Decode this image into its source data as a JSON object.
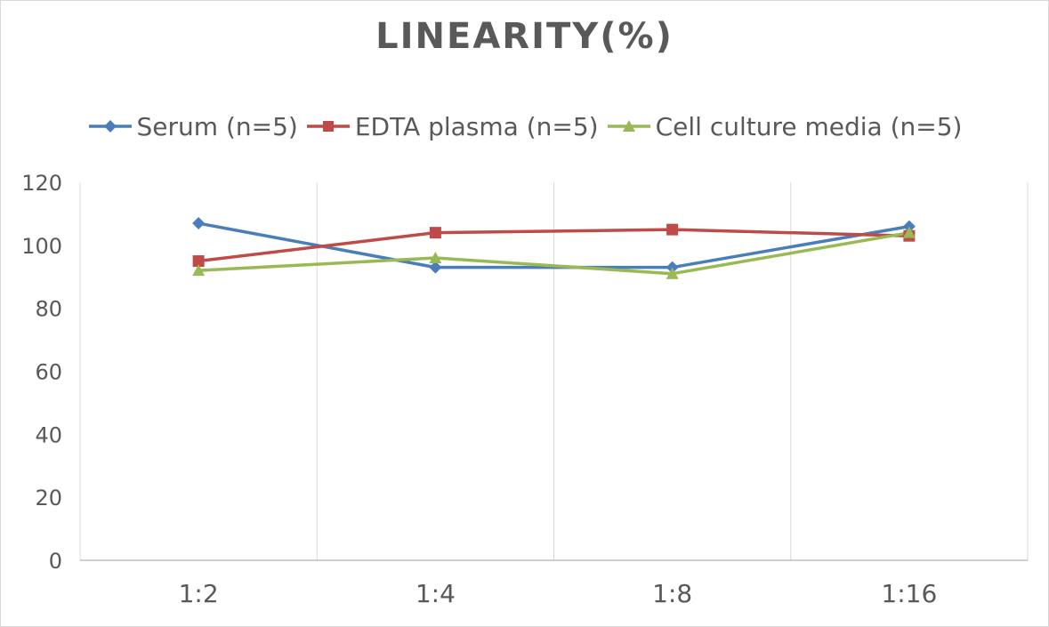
{
  "chart_data": {
    "type": "line",
    "title": "LINEARITY(%)",
    "xlabel": "",
    "ylabel": "",
    "categories": [
      "1:2",
      "1:4",
      "1:8",
      "1:16"
    ],
    "ylim": [
      0,
      120
    ],
    "yticks": [
      0,
      20,
      40,
      60,
      80,
      100,
      120
    ],
    "grid": "vertical",
    "legend_position": "top",
    "series": [
      {
        "name": "Serum (n=5)",
        "values": [
          107,
          93,
          93,
          106
        ],
        "color": "#4a7ebb",
        "marker": "diamond"
      },
      {
        "name": "EDTA plasma (n=5)",
        "values": [
          95,
          104,
          105,
          103
        ],
        "color": "#be4b48",
        "marker": "square"
      },
      {
        "name": "Cell culture media (n=5)",
        "values": [
          92,
          96,
          91,
          104
        ],
        "color": "#98b954",
        "marker": "triangle"
      }
    ]
  }
}
